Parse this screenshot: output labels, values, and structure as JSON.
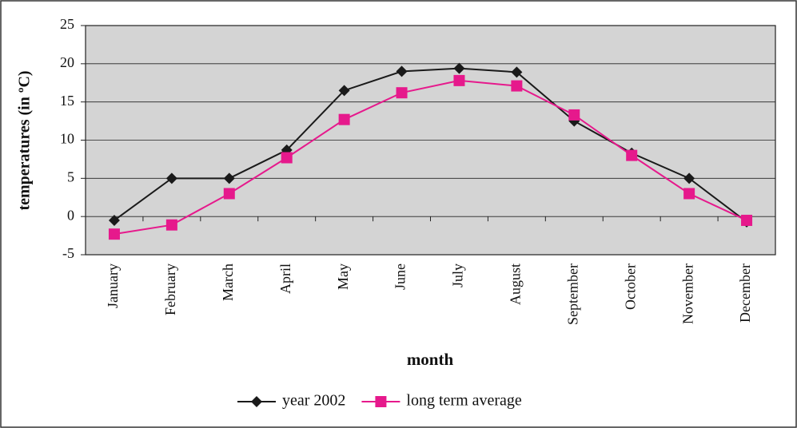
{
  "chart_data": {
    "type": "line",
    "y_label": "temperatures (in ºC)",
    "x_label": "month",
    "categories": [
      "January",
      "February",
      "March",
      "April",
      "May",
      "June",
      "July",
      "August",
      "September",
      "October",
      "November",
      "December"
    ],
    "series": [
      {
        "name": "year 2002",
        "color": "#1a1a1a",
        "marker": "diamond",
        "values": [
          -0.5,
          5,
          5,
          8.7,
          16.5,
          19,
          19.4,
          18.9,
          12.5,
          8.3,
          5,
          -0.7
        ]
      },
      {
        "name": "long term average",
        "color": "#e6198c",
        "marker": "square",
        "values": [
          -2.3,
          -1.1,
          3,
          7.7,
          12.7,
          16.2,
          17.8,
          17.1,
          13.3,
          8,
          3,
          -0.5
        ]
      }
    ],
    "ylim": [
      -5,
      25
    ],
    "yticks": [
      -5,
      0,
      5,
      10,
      15,
      20,
      25
    ],
    "grid": true,
    "legend": "bottom",
    "plot_background": "#d4d4d4"
  }
}
